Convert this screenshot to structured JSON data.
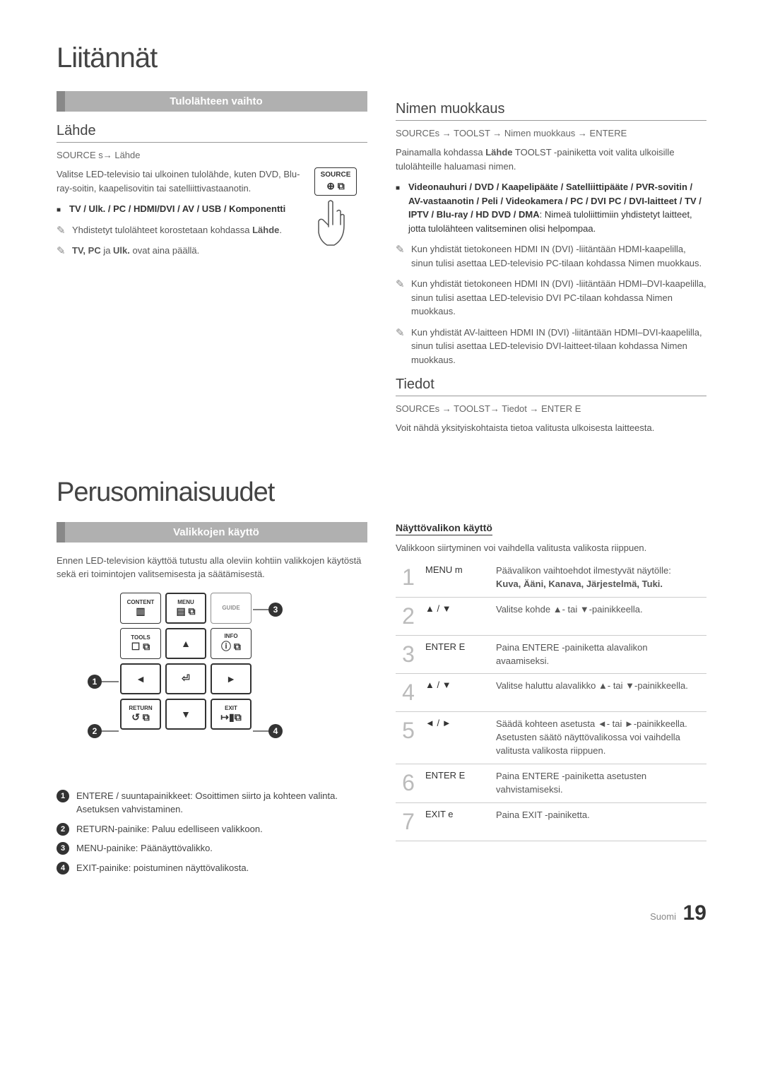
{
  "page": {
    "title": "Liitännät",
    "footer_lang": "Suomi",
    "footer_num": "19"
  },
  "topLeft": {
    "bar": "Tulolähteen vaihto",
    "heading": "Lähde",
    "path": "SOURCE s→ Lähde",
    "intro": "Valitse LED-televisio tai ulkoinen tulolähde, kuten DVD, Blu-ray-soitin, kaapelisovitin tai satelliittivastaanotin.",
    "bullet": "TV / Ulk. / PC / HDMI/DVI / AV / USB / Komponentti",
    "note1_pre": "Yhdistetyt tulolähteet korostetaan kohdassa ",
    "note1_strong": "Lähde",
    "note2_strong": "TV, PC",
    "note2_ja": " ja ",
    "note2_strong2": "Ulk.",
    "note2_rest": " ovat aina päällä.",
    "remote_label": "SOURCE"
  },
  "topRight": {
    "heading1": "Nimen muokkaus",
    "path1": "SOURCEs  → TOOLST  → Nimen muokkaus → ENTERE",
    "intro1_pre": "Painamalla kohdassa ",
    "intro1_s1": "Lähde",
    "intro1_mid": " TOOLST   -painiketta voit valita ulkoisille tulolähteille haluamasi nimen.",
    "bullet1": "Videonauhuri / DVD / Kaapelipääte / Satelliittipääte / PVR-sovitin / AV-vastaanotin / Peli / Videokamera / PC / DVI PC / DVI-laitteet / TV / IPTV / Blu-ray / HD DVD / DMA",
    "bullet1_rest": ": Nimeä tuloliittimiin yhdistetyt laitteet, jotta tulolähteen valitseminen olisi helpompaa.",
    "note1": "Kun yhdistät tietokoneen HDMI IN (DVI) -liitäntään HDMI-kaapelilla, sinun tulisi asettaa LED-televisio PC-tilaan kohdassa Nimen muokkaus.",
    "note2": "Kun yhdistät tietokoneen HDMI IN (DVI) -liitäntään HDMI–DVI-kaapelilla, sinun tulisi asettaa LED-televisio DVI PC-tilaan kohdassa Nimen muokkaus.",
    "note3": "Kun yhdistät AV-laitteen HDMI IN (DVI) -liitäntään HDMI–DVI-kaapelilla, sinun tulisi asettaa LED-televisio DVI-laitteet-tilaan kohdassa Nimen muokkaus.",
    "heading2": "Tiedot",
    "path2": "SOURCEs → TOOLST→ Tiedot → ENTER   E",
    "body2": "Voit nähdä yksityiskohtaista tietoa valitusta ulkoisesta laitteesta."
  },
  "perus": {
    "title": "Perusominaisuudet",
    "bar": "Valikkojen käyttö",
    "intro": "Ennen LED-television käyttöä tutustu alla oleviin kohtiin valikkojen käytöstä sekä eri toimintojen valitsemisesta ja säätämisestä.",
    "buttons": {
      "content": "CONTENT",
      "menu": "MENU",
      "guide": "GUIDE",
      "tools": "TOOLS",
      "info": "INFO",
      "return": "RETURN",
      "exit": "EXIT"
    },
    "callouts": [
      "ENTERE   / suuntapainikkeet: Osoittimen siirto ja kohteen valinta. Asetuksen vahvistaminen.",
      "RETURN-painike: Paluu edelliseen valikkoon.",
      "MENU-painike: Päänäyttövalikko.",
      "EXIT-painike: poistuminen näyttövalikosta."
    ]
  },
  "menuTable": {
    "header": "Näyttövalikon käyttö",
    "sub": "Valikkoon siirtyminen voi vaihdella valitusta valikosta riippuen.",
    "rows": [
      {
        "n": "1",
        "act": "MENU m",
        "desc": "Päävalikon vaihtoehdot ilmestyvät näytölle:\nKuva, Ääni, Kanava, Järjestelmä, Tuki."
      },
      {
        "n": "2",
        "act": "▲ / ▼",
        "desc": "Valitse kohde ▲- tai ▼-painikkeella."
      },
      {
        "n": "3",
        "act": "ENTER E",
        "desc": "Paina ENTERE   -painiketta alavalikon avaamiseksi."
      },
      {
        "n": "4",
        "act": "▲ / ▼",
        "desc": "Valitse haluttu alavalikko ▲- tai ▼-painikkeella."
      },
      {
        "n": "5",
        "act": "◄ / ►",
        "desc": "Säädä kohteen asetusta ◄- tai ►-painikkeella. Asetusten säätö näyttövalikossa voi vaihdella valitusta valikosta riippuen."
      },
      {
        "n": "6",
        "act": "ENTER E",
        "desc": "Paina ENTERE   -painiketta asetusten vahvistamiseksi."
      },
      {
        "n": "7",
        "act": "EXIT e",
        "desc": "Paina EXIT -painiketta."
      }
    ]
  }
}
